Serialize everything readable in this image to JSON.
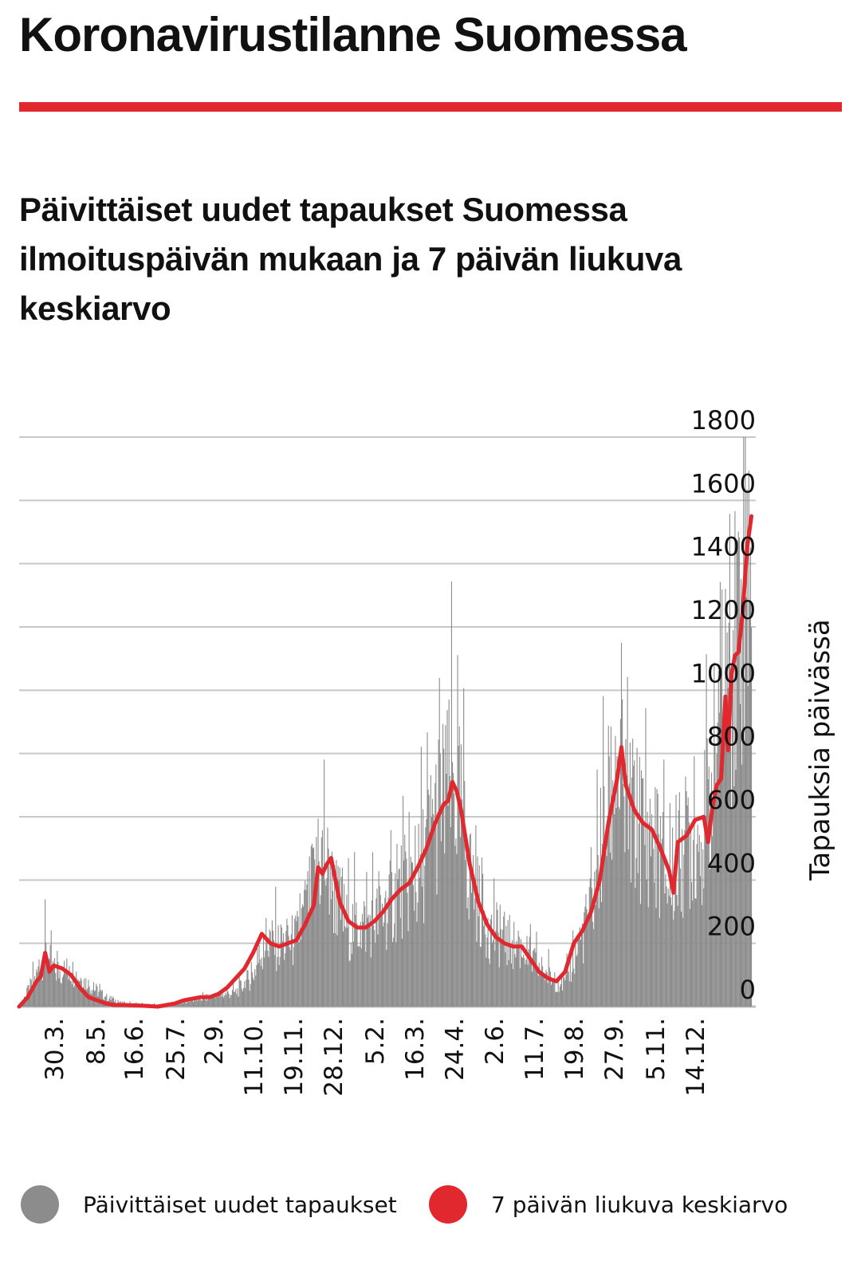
{
  "page": {
    "title": "Koronavirustilanne Suomessa",
    "accent_color": "#e0282e"
  },
  "chart_data": {
    "type": "bar",
    "title": "Päivittäiset uudet tapaukset Suomessa ilmoituspäivän mukaan ja 7 päivän liukuva keskiarvo",
    "ylabel": "Tapauksia päivässä",
    "xlabel": "",
    "ylim": [
      0,
      1800
    ],
    "yticks": [
      0,
      200,
      400,
      600,
      800,
      1000,
      1200,
      1400,
      1600,
      1800
    ],
    "xtick_labels": [
      "30.3.",
      "8.5.",
      "16.6.",
      "25.7.",
      "2.9.",
      "11.10.",
      "19.11.",
      "28.12.",
      "5.2.",
      "16.3.",
      "24.4.",
      "2.6.",
      "11.7.",
      "19.8.",
      "27.9.",
      "5.11.",
      "14.12."
    ],
    "grid": "horizontal",
    "axis_position": "right",
    "series": [
      {
        "name": "Päivittäiset uudet tapaukset",
        "type": "bar",
        "color": "#8c8c8c",
        "approx_daily_values_interpolated_from_points": [
          [
            0,
            0
          ],
          [
            20,
            95
          ],
          [
            30,
            175
          ],
          [
            40,
            110
          ],
          [
            60,
            115
          ],
          [
            80,
            70
          ],
          [
            100,
            30
          ],
          [
            120,
            10
          ],
          [
            160,
            5
          ],
          [
            180,
            10
          ],
          [
            220,
            30
          ],
          [
            250,
            45
          ],
          [
            270,
            100
          ],
          [
            285,
            210
          ],
          [
            300,
            190
          ],
          [
            320,
            210
          ],
          [
            340,
            380
          ],
          [
            350,
            480
          ],
          [
            360,
            380
          ],
          [
            380,
            250
          ],
          [
            400,
            260
          ],
          [
            420,
            290
          ],
          [
            440,
            370
          ],
          [
            460,
            400
          ],
          [
            470,
            500
          ],
          [
            480,
            600
          ],
          [
            490,
            650
          ],
          [
            500,
            700
          ],
          [
            510,
            600
          ],
          [
            520,
            420
          ],
          [
            540,
            250
          ],
          [
            560,
            210
          ],
          [
            580,
            180
          ],
          [
            600,
            120
          ],
          [
            620,
            80
          ],
          [
            630,
            70
          ],
          [
            640,
            150
          ],
          [
            660,
            300
          ],
          [
            670,
            480
          ],
          [
            680,
            620
          ],
          [
            690,
            760
          ],
          [
            700,
            620
          ],
          [
            720,
            560
          ],
          [
            740,
            480
          ],
          [
            750,
            380
          ],
          [
            760,
            460
          ],
          [
            770,
            520
          ],
          [
            790,
            550
          ],
          [
            800,
            700
          ],
          [
            810,
            980
          ],
          [
            820,
            1100
          ],
          [
            830,
            1250
          ],
          [
            840,
            1450
          ],
          [
            845,
            1550
          ]
        ]
      },
      {
        "name": "7 päivän liukuva keskiarvo",
        "type": "line",
        "color": "#e0282e",
        "approx_values_at_day_index": [
          [
            0,
            0
          ],
          [
            10,
            30
          ],
          [
            20,
            80
          ],
          [
            25,
            95
          ],
          [
            30,
            170
          ],
          [
            35,
            110
          ],
          [
            40,
            130
          ],
          [
            50,
            120
          ],
          [
            60,
            100
          ],
          [
            70,
            60
          ],
          [
            80,
            30
          ],
          [
            90,
            20
          ],
          [
            100,
            10
          ],
          [
            110,
            5
          ],
          [
            120,
            5
          ],
          [
            140,
            3
          ],
          [
            160,
            0
          ],
          [
            170,
            5
          ],
          [
            180,
            10
          ],
          [
            190,
            20
          ],
          [
            200,
            25
          ],
          [
            210,
            30
          ],
          [
            220,
            30
          ],
          [
            230,
            40
          ],
          [
            240,
            60
          ],
          [
            250,
            90
          ],
          [
            260,
            120
          ],
          [
            270,
            170
          ],
          [
            280,
            230
          ],
          [
            290,
            200
          ],
          [
            300,
            190
          ],
          [
            310,
            200
          ],
          [
            320,
            210
          ],
          [
            330,
            260
          ],
          [
            340,
            320
          ],
          [
            345,
            440
          ],
          [
            350,
            420
          ],
          [
            355,
            450
          ],
          [
            360,
            470
          ],
          [
            365,
            400
          ],
          [
            370,
            330
          ],
          [
            380,
            270
          ],
          [
            390,
            250
          ],
          [
            400,
            250
          ],
          [
            410,
            270
          ],
          [
            420,
            300
          ],
          [
            430,
            340
          ],
          [
            440,
            370
          ],
          [
            450,
            390
          ],
          [
            460,
            440
          ],
          [
            470,
            500
          ],
          [
            480,
            580
          ],
          [
            490,
            640
          ],
          [
            495,
            650
          ],
          [
            500,
            710
          ],
          [
            505,
            680
          ],
          [
            510,
            620
          ],
          [
            520,
            450
          ],
          [
            530,
            330
          ],
          [
            540,
            260
          ],
          [
            550,
            220
          ],
          [
            560,
            200
          ],
          [
            570,
            190
          ],
          [
            580,
            190
          ],
          [
            590,
            150
          ],
          [
            600,
            110
          ],
          [
            610,
            90
          ],
          [
            620,
            80
          ],
          [
            630,
            110
          ],
          [
            640,
            200
          ],
          [
            650,
            240
          ],
          [
            660,
            300
          ],
          [
            670,
            400
          ],
          [
            680,
            580
          ],
          [
            690,
            720
          ],
          [
            695,
            820
          ],
          [
            700,
            700
          ],
          [
            710,
            620
          ],
          [
            720,
            580
          ],
          [
            730,
            560
          ],
          [
            740,
            500
          ],
          [
            750,
            430
          ],
          [
            755,
            360
          ],
          [
            760,
            520
          ],
          [
            770,
            540
          ],
          [
            780,
            590
          ],
          [
            790,
            600
          ],
          [
            795,
            520
          ],
          [
            800,
            630
          ],
          [
            805,
            700
          ],
          [
            810,
            720
          ],
          [
            815,
            980
          ],
          [
            818,
            810
          ],
          [
            822,
            1050
          ],
          [
            826,
            1110
          ],
          [
            830,
            1120
          ],
          [
            835,
            1250
          ],
          [
            840,
            1450
          ],
          [
            845,
            1550
          ]
        ]
      }
    ],
    "legend_position": "bottom",
    "legend": [
      {
        "label": "Päivittäiset uudet tapaukset",
        "color": "#8c8c8c",
        "shape": "circle"
      },
      {
        "label": "7 päivän liukuva keskiarvo",
        "color": "#e0282e",
        "shape": "circle"
      }
    ]
  }
}
